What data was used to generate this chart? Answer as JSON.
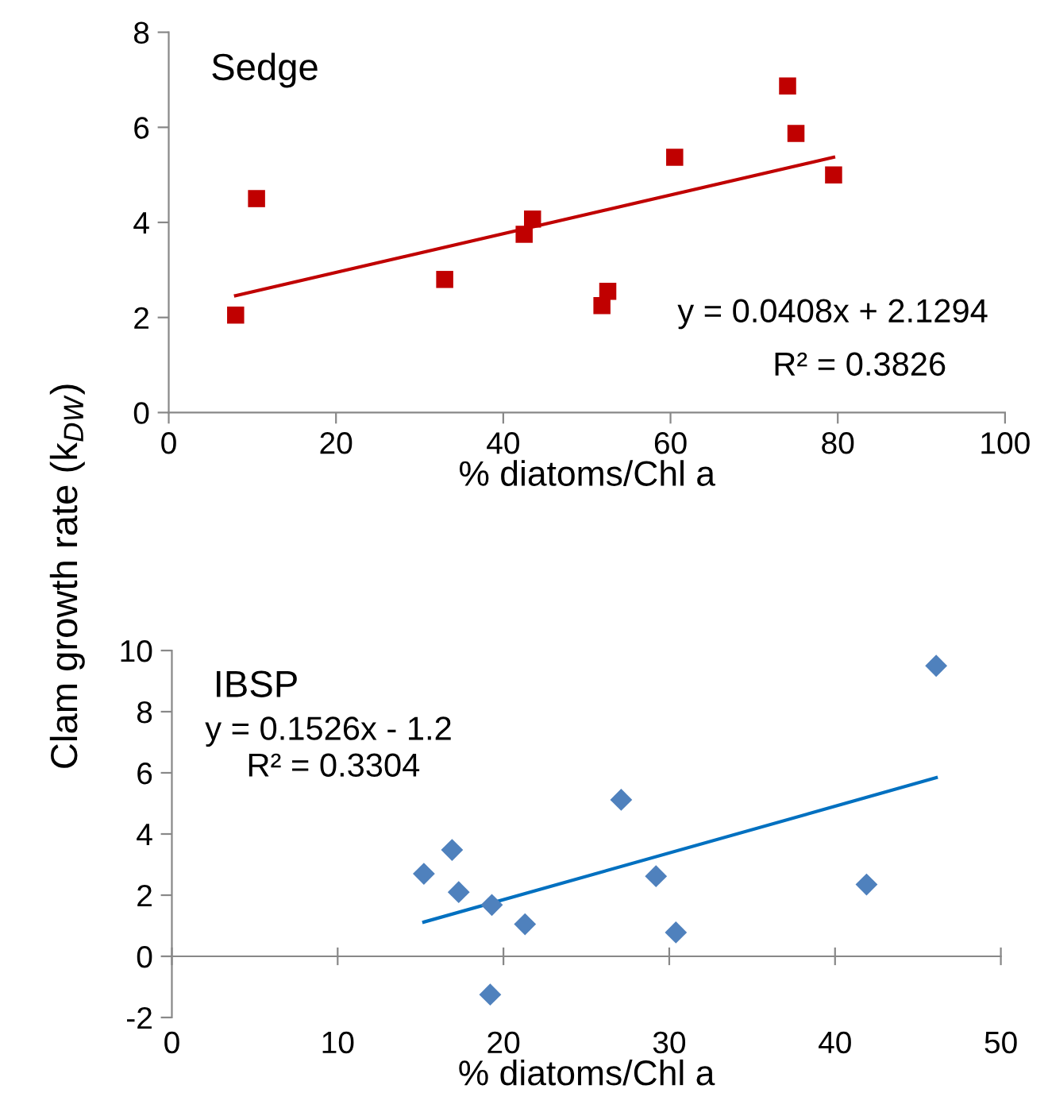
{
  "chart_data": [
    {
      "type": "scatter",
      "title": "Sedge",
      "xlabel": "% diatoms/Chl a",
      "ylabel": "Clam growth rate (k$_{DW}$)",
      "xlim": [
        0,
        100
      ],
      "xticks": [
        0,
        20,
        40,
        60,
        80,
        100
      ],
      "ylim": [
        0,
        8
      ],
      "yticks": [
        0,
        2,
        4,
        6,
        8
      ],
      "grid": false,
      "series": [
        {
          "color": "#c00000",
          "marker": "square",
          "x": [
            8,
            10.5,
            33,
            42.5,
            43.5,
            51.8,
            52.5,
            60.5,
            74,
            75,
            79.5
          ],
          "values": [
            2.05,
            4.5,
            2.8,
            3.75,
            4.07,
            2.25,
            2.55,
            5.37,
            6.87,
            5.87,
            5.0
          ]
        },
        {
          "type": "line",
          "color": "#c00000",
          "marker": "none",
          "line_style": "solid",
          "x": [
            8,
            79.5
          ],
          "values": [
            2.46,
            5.37
          ]
        }
      ],
      "annotations": [
        "y = 0.0408x + 2.1294",
        "R² = 0.3826"
      ]
    },
    {
      "type": "scatter",
      "title": "IBSP",
      "xlabel": "% diatoms/Chl a",
      "xlim": [
        0,
        50
      ],
      "xticks": [
        0,
        10,
        20,
        30,
        40,
        50
      ],
      "ylim": [
        -2,
        10
      ],
      "yticks": [
        -2,
        0,
        2,
        4,
        6,
        8,
        10
      ],
      "grid": false,
      "series": [
        {
          "color": "#4f81bd",
          "marker": "diamond",
          "x": [
            15.2,
            16.9,
            17.3,
            19.3,
            21.3,
            27.1,
            29.2,
            30.4,
            41.9,
            46.1,
            19.2
          ],
          "values": [
            2.7,
            3.48,
            2.1,
            1.68,
            1.05,
            5.12,
            2.62,
            0.78,
            2.35,
            9.5,
            -1.25
          ]
        },
        {
          "type": "line",
          "color": "#0070c0",
          "marker": "none",
          "line_style": "solid",
          "x": [
            15.2,
            46.1
          ],
          "values": [
            1.12,
            5.84
          ]
        }
      ],
      "annotations": [
        "y = 0.1526x - 1.2",
        "R² = 0.3304"
      ]
    }
  ]
}
